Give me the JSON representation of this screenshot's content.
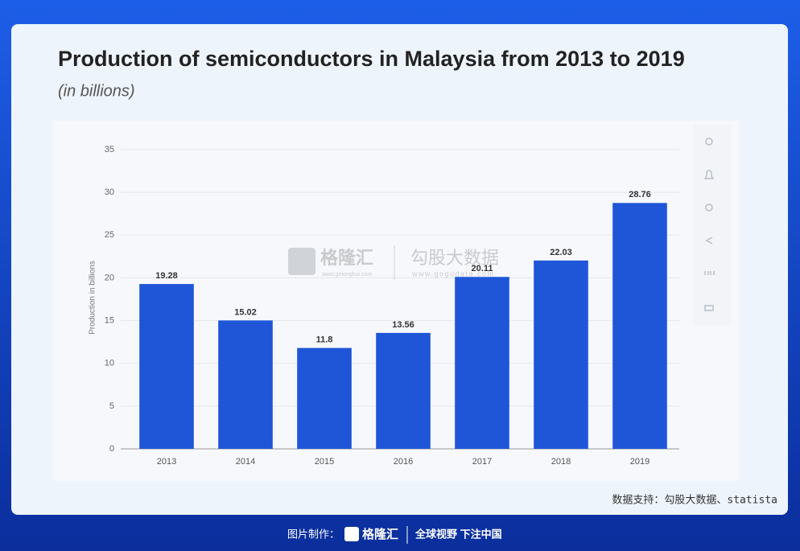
{
  "chart_data": {
    "type": "bar",
    "title": "Production of semiconductors in Malaysia from 2013 to 2019",
    "subtitle": "(in billions)",
    "y_label": "Production in billions",
    "categories": [
      "2013",
      "2014",
      "2015",
      "2016",
      "2017",
      "2018",
      "2019"
    ],
    "values": [
      19.28,
      15.02,
      11.8,
      13.56,
      20.11,
      22.03,
      28.76
    ],
    "color": "#1f56d8",
    "ylim": [
      0,
      35
    ],
    "yticks": [
      0,
      5,
      10,
      15,
      20,
      25,
      30,
      35
    ],
    "grid": true
  },
  "watermark": {
    "brand1": "格隆汇",
    "url1": "www.gelonghui.com",
    "brand2": "勾股大数据",
    "url2": "www.gogudata.com"
  },
  "source": "数据支持：勾股大数据、statista",
  "footer": {
    "label": "图片制作：",
    "brand": "格隆汇",
    "slogan": "全球视野 下注中国"
  }
}
